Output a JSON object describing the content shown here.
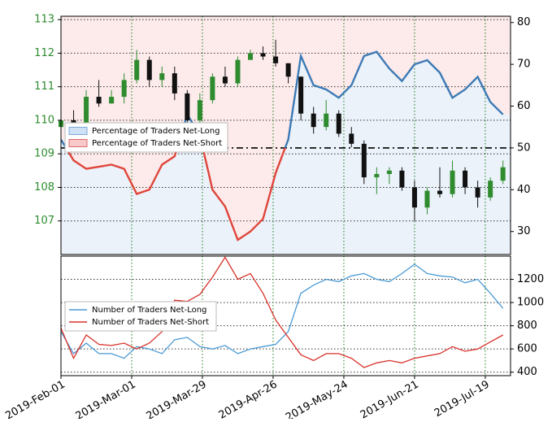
{
  "chart_data": [
    {
      "type": "candlestick",
      "x": [
        "2019-02-01",
        "2019-02-06",
        "2019-02-11",
        "2019-02-16",
        "2019-02-21",
        "2019-02-26",
        "2019-03-03",
        "2019-03-08",
        "2019-03-13",
        "2019-03-18",
        "2019-03-23",
        "2019-03-28",
        "2019-04-02",
        "2019-04-07",
        "2019-04-12",
        "2019-04-17",
        "2019-04-22",
        "2019-04-27",
        "2019-05-02",
        "2019-05-07",
        "2019-05-12",
        "2019-05-17",
        "2019-05-22",
        "2019-05-27",
        "2019-06-01",
        "2019-06-06",
        "2019-06-11",
        "2019-06-16",
        "2019-06-21",
        "2019-06-26",
        "2019-07-01",
        "2019-07-06",
        "2019-07-11",
        "2019-07-16",
        "2019-07-21",
        "2019-07-26"
      ],
      "open": [
        109.8,
        110.0,
        109.9,
        110.7,
        110.5,
        110.7,
        111.2,
        111.8,
        111.2,
        111.4,
        110.8,
        110.0,
        110.6,
        111.3,
        111.1,
        111.8,
        112.0,
        111.9,
        111.7,
        111.3,
        110.2,
        109.8,
        110.2,
        109.6,
        109.3,
        108.3,
        108.4,
        108.5,
        108.0,
        107.4,
        107.9,
        107.8,
        108.5,
        108.0,
        107.7,
        108.2
      ],
      "high": [
        110.2,
        110.3,
        110.9,
        111.2,
        110.9,
        111.4,
        112.1,
        111.9,
        111.6,
        111.6,
        110.9,
        110.8,
        111.4,
        111.6,
        111.9,
        112.1,
        112.2,
        112.4,
        111.7,
        111.3,
        110.4,
        110.6,
        110.3,
        109.8,
        109.4,
        108.6,
        108.6,
        108.6,
        108.2,
        108.0,
        108.6,
        108.8,
        108.6,
        108.2,
        108.3,
        108.8
      ],
      "low": [
        109.4,
        109.7,
        109.8,
        110.4,
        110.5,
        110.5,
        111.1,
        111.0,
        111.0,
        110.6,
        109.7,
        109.8,
        110.5,
        111.0,
        111.0,
        111.8,
        111.8,
        111.6,
        111.1,
        110.0,
        109.6,
        109.7,
        109.5,
        109.2,
        108.1,
        107.8,
        108.1,
        107.9,
        107.0,
        107.2,
        107.7,
        107.7,
        107.8,
        107.4,
        107.6,
        108.1
      ],
      "close": [
        110.0,
        109.9,
        110.7,
        110.5,
        110.7,
        111.2,
        111.8,
        111.2,
        111.4,
        110.8,
        110.0,
        110.6,
        111.3,
        111.1,
        111.8,
        112.0,
        111.9,
        111.7,
        111.3,
        110.2,
        109.8,
        110.2,
        109.6,
        109.3,
        108.3,
        108.4,
        108.5,
        108.0,
        107.4,
        107.9,
        107.8,
        108.5,
        108.0,
        107.7,
        108.2,
        108.6
      ],
      "up_color": "#2e8b2e",
      "down_color": "#111111",
      "xlim": [
        "2019-02-01",
        "2019-07-29"
      ],
      "ylim": [
        106,
        113.1
      ],
      "yticks": [
        107,
        108,
        109,
        110,
        111,
        112,
        113
      ],
      "ytick_color": "#2e8b2e",
      "overlay": {
        "type": "line",
        "axis": "y2",
        "values": [
          52,
          47,
          45,
          45.5,
          46,
          45,
          39,
          40,
          46,
          48,
          58,
          53,
          40,
          36,
          28,
          30,
          33,
          44,
          52,
          72,
          65,
          64,
          62,
          65,
          72,
          73,
          69,
          66,
          70,
          71,
          68,
          62,
          64,
          67,
          61,
          58
        ],
        "color_above": "#3d7ab5",
        "color_below": "#e0453a",
        "threshold": 50
      },
      "y2lim": [
        24.5,
        81.5
      ],
      "y2ticks": [
        30,
        40,
        50,
        60,
        70,
        80
      ],
      "reference_line": 50,
      "grid": true,
      "legend": [
        {
          "name": "Percentage of Traders Net-Long",
          "color": "#cfe2f5"
        },
        {
          "name": "Percentage of Traders Net-Short",
          "color": "#f7c9c9"
        }
      ],
      "legend_position": "left"
    },
    {
      "type": "line",
      "x": [
        "2019-02-01",
        "2019-02-06",
        "2019-02-11",
        "2019-02-16",
        "2019-02-21",
        "2019-02-26",
        "2019-03-03",
        "2019-03-08",
        "2019-03-13",
        "2019-03-18",
        "2019-03-23",
        "2019-03-28",
        "2019-04-02",
        "2019-04-07",
        "2019-04-12",
        "2019-04-17",
        "2019-04-22",
        "2019-04-27",
        "2019-05-02",
        "2019-05-07",
        "2019-05-12",
        "2019-05-17",
        "2019-05-22",
        "2019-05-27",
        "2019-06-01",
        "2019-06-06",
        "2019-06-11",
        "2019-06-16",
        "2019-06-21",
        "2019-06-26",
        "2019-07-01",
        "2019-07-06",
        "2019-07-11",
        "2019-07-16",
        "2019-07-21",
        "2019-07-26"
      ],
      "series": [
        {
          "name": "Number of Traders Net-Long",
          "color": "#4a9ad6",
          "values": [
            750,
            560,
            650,
            560,
            560,
            520,
            620,
            600,
            560,
            680,
            700,
            620,
            600,
            630,
            560,
            600,
            620,
            640,
            750,
            1080,
            1150,
            1200,
            1180,
            1230,
            1250,
            1200,
            1180,
            1250,
            1330,
            1250,
            1230,
            1220,
            1170,
            1200,
            1080,
            950
          ]
        },
        {
          "name": "Number of Traders Net-Short",
          "color": "#d8322b",
          "values": [
            780,
            520,
            720,
            640,
            630,
            650,
            600,
            650,
            750,
            1020,
            1010,
            1070,
            1220,
            1390,
            1200,
            1250,
            1080,
            850,
            700,
            550,
            500,
            560,
            560,
            520,
            440,
            480,
            500,
            480,
            520,
            540,
            560,
            620,
            580,
            600,
            660,
            720
          ]
        }
      ],
      "xlim": [
        "2019-02-01",
        "2019-07-29"
      ],
      "xticks": [
        {
          "value": "2019-02-01",
          "label": "2019-Feb-01"
        },
        {
          "value": "2019-03-01",
          "label": "2019-Mar-01"
        },
        {
          "value": "2019-03-29",
          "label": "2019-Mar-29"
        },
        {
          "value": "2019-04-26",
          "label": "2019-Apr-26"
        },
        {
          "value": "2019-05-24",
          "label": "2019-May-24"
        },
        {
          "value": "2019-06-21",
          "label": "2019-Jun-21"
        },
        {
          "value": "2019-07-19",
          "label": "2019-Jul-19"
        }
      ],
      "ylim": [
        370,
        1400
      ],
      "yticks": [
        400,
        600,
        800,
        1000,
        1200
      ],
      "grid": true,
      "legend_position": "left"
    }
  ]
}
